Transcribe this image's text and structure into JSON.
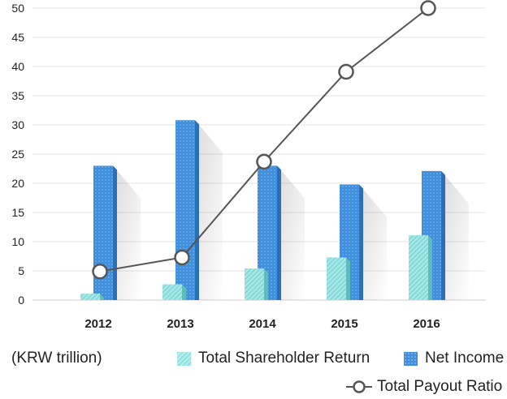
{
  "chart_data": {
    "type": "bar",
    "categories": [
      "2012",
      "2013",
      "2014",
      "2015",
      "2016"
    ],
    "series": [
      {
        "name": "Total Shareholder Return",
        "type": "bar",
        "values": [
          1.1,
          2.7,
          5.4,
          7.3,
          11.1
        ]
      },
      {
        "name": "Net Income",
        "type": "bar",
        "values": [
          23.0,
          30.8,
          23.0,
          19.8,
          22.1
        ]
      },
      {
        "name": "Total Payout Ratio",
        "type": "line",
        "values": [
          4.9,
          7.3,
          23.7,
          39.1,
          50.0
        ]
      }
    ],
    "unit_label": "(KRW trillion)",
    "ylim": [
      0,
      50
    ],
    "y_ticks": [
      0,
      5,
      10,
      15,
      20,
      25,
      30,
      35,
      40,
      45,
      50
    ],
    "grid": true,
    "legend_position": "bottom-right",
    "colors": {
      "total_shareholder_return": "#8fe0e0",
      "net_income": "#3f8fdc",
      "total_payout_ratio": "#555555",
      "grid": "#e4e4e4"
    }
  },
  "legend": {
    "tsr_label": "Total Shareholder Return",
    "ni_label": "Net Income",
    "tpr_label": "Total Payout Ratio"
  }
}
